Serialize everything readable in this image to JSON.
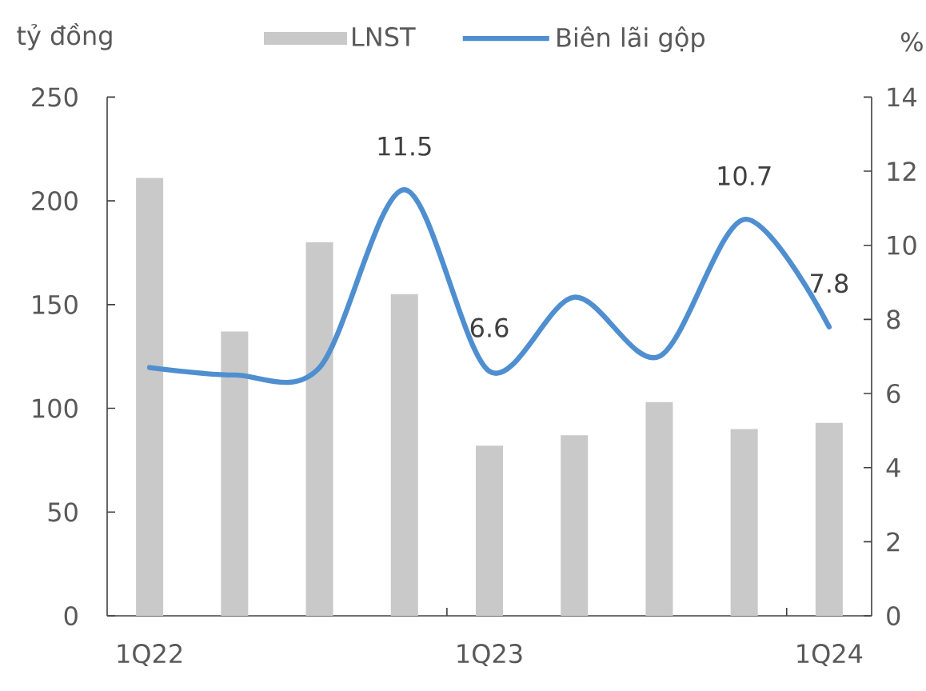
{
  "chart_data": {
    "type": "bar",
    "categories": [
      "1Q22",
      null,
      null,
      null,
      "1Q23",
      null,
      null,
      null,
      "1Q24"
    ],
    "ylabel": "tỷ đồng",
    "y2label": "%",
    "ylim": [
      0,
      250
    ],
    "yticks": [
      0,
      50,
      100,
      150,
      200,
      250
    ],
    "y2lim": [
      0,
      14
    ],
    "y2ticks": [
      0,
      2,
      4,
      6,
      8,
      10,
      12,
      14
    ],
    "legend": "top",
    "series": [
      {
        "name": "LNST",
        "color": "#c9c9c9",
        "values": [
          211,
          137,
          180,
          155,
          82,
          87,
          103,
          90,
          93
        ]
      },
      {
        "name": "Biên lãi gộp",
        "type": "line",
        "axis": "y2",
        "color": "#4f8fd0",
        "values": [
          6.7,
          6.5,
          6.7,
          11.5,
          6.6,
          8.6,
          7.0,
          10.7,
          7.8
        ],
        "value_labels": [
          null,
          null,
          null,
          "11.5",
          "6.6",
          null,
          null,
          "10.7",
          "7.8"
        ]
      }
    ]
  }
}
